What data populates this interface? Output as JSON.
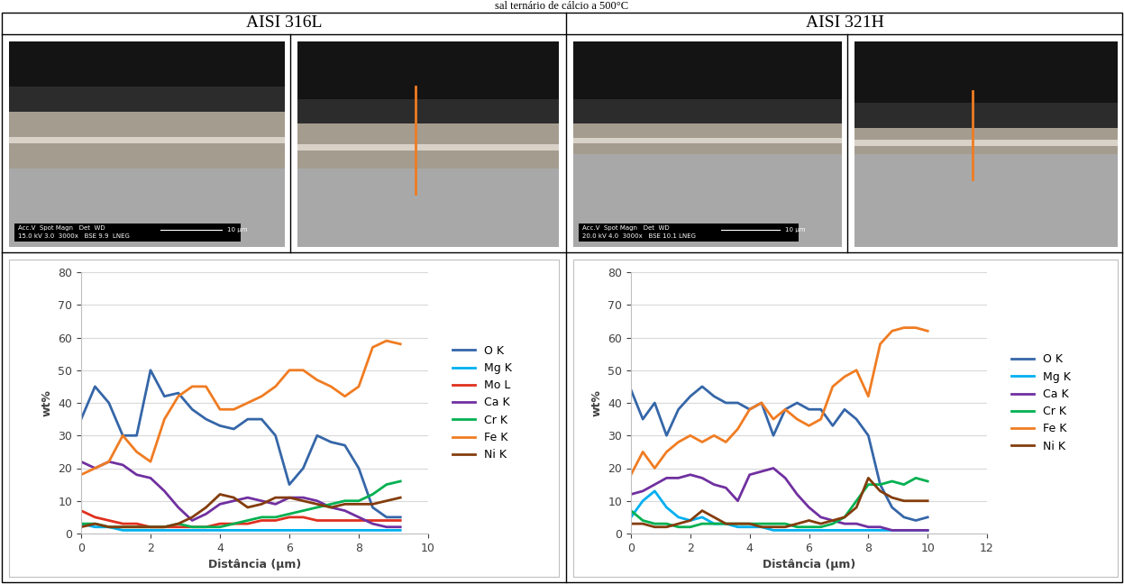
{
  "caption": "sal ternário de cálcio a 500°C",
  "headers": [
    "AISI 316L",
    "AISI 321H"
  ],
  "sem_labels": [
    {
      "lines": [
        "Acc.V  Spot Magn   Det  WD",
        "15.0 kV 3.0  3000x   BSE 9.9  LNEG"
      ],
      "scale": "10 µm"
    },
    {
      "lines": [
        "Acc.V  Spot Magn   Det  WD",
        "20.0 kV 4.0  3000x   BSE 10.1 LNEG"
      ],
      "scale": "10 µm"
    }
  ],
  "chart_data": [
    {
      "type": "line",
      "xlabel": "Distância (µm)",
      "ylabel": "wt%",
      "xlim": [
        0,
        10
      ],
      "xticks": [
        0,
        2,
        4,
        6,
        8,
        10
      ],
      "ylim": [
        0,
        80
      ],
      "yticks": [
        0,
        10,
        20,
        30,
        40,
        50,
        60,
        70,
        80
      ],
      "grid": true,
      "legend": "right",
      "x": [
        0,
        0.4,
        0.8,
        1.2,
        1.6,
        2.0,
        2.4,
        2.8,
        3.2,
        3.6,
        4.0,
        4.4,
        4.8,
        5.2,
        5.6,
        6.0,
        6.4,
        6.8,
        7.2,
        7.6,
        8.0,
        8.4,
        8.8,
        9.2
      ],
      "series": [
        {
          "name": "O K",
          "color": "#3566A8",
          "values": [
            35,
            45,
            40,
            30,
            30,
            50,
            42,
            43,
            38,
            35,
            33,
            32,
            35,
            35,
            30,
            15,
            20,
            30,
            28,
            27,
            20,
            8,
            5,
            5
          ]
        },
        {
          "name": "Mg K",
          "color": "#00B0F0",
          "values": [
            3,
            2,
            2,
            1,
            1,
            1,
            1,
            1,
            1,
            1,
            1,
            1,
            1,
            1,
            1,
            1,
            1,
            1,
            1,
            1,
            1,
            1,
            1,
            1
          ]
        },
        {
          "name": "Mo L",
          "color": "#E0301E",
          "values": [
            7,
            5,
            4,
            3,
            3,
            2,
            2,
            2,
            2,
            2,
            3,
            3,
            3,
            4,
            4,
            5,
            5,
            4,
            4,
            4,
            4,
            4,
            4,
            4
          ]
        },
        {
          "name": "Ca K",
          "color": "#7030A0",
          "values": [
            22,
            20,
            22,
            21,
            18,
            17,
            13,
            8,
            4,
            6,
            9,
            10,
            11,
            10,
            9,
            11,
            11,
            10,
            8,
            7,
            5,
            3,
            2,
            2
          ]
        },
        {
          "name": "Cr K",
          "color": "#00B050",
          "values": [
            3,
            3,
            2,
            2,
            2,
            2,
            2,
            3,
            2,
            2,
            2,
            3,
            4,
            5,
            5,
            6,
            7,
            8,
            9,
            10,
            10,
            12,
            15,
            16
          ]
        },
        {
          "name": "Fe K",
          "color": "#F07C22",
          "values": [
            18,
            20,
            22,
            30,
            25,
            22,
            35,
            42,
            45,
            45,
            38,
            38,
            40,
            42,
            45,
            50,
            50,
            47,
            45,
            42,
            45,
            57,
            59,
            58
          ]
        },
        {
          "name": "Ni K",
          "color": "#843C0C",
          "values": [
            2,
            3,
            2,
            2,
            2,
            2,
            2,
            3,
            5,
            8,
            12,
            11,
            8,
            9,
            11,
            11,
            10,
            9,
            8,
            9,
            9,
            9,
            10,
            11
          ]
        }
      ]
    },
    {
      "type": "line",
      "xlabel": "Distância (µm)",
      "ylabel": "wt%",
      "xlim": [
        0,
        12
      ],
      "xticks": [
        0,
        2,
        4,
        6,
        8,
        10,
        12
      ],
      "ylim": [
        0,
        80
      ],
      "yticks": [
        0,
        10,
        20,
        30,
        40,
        50,
        60,
        70,
        80
      ],
      "grid": true,
      "legend": "right",
      "x": [
        0,
        0.4,
        0.8,
        1.2,
        1.6,
        2.0,
        2.4,
        2.8,
        3.2,
        3.6,
        4.0,
        4.4,
        4.8,
        5.2,
        5.6,
        6.0,
        6.4,
        6.8,
        7.2,
        7.6,
        8.0,
        8.4,
        8.8,
        9.2,
        9.6,
        10.0
      ],
      "series": [
        {
          "name": "O K",
          "color": "#3566A8",
          "values": [
            44,
            35,
            40,
            30,
            38,
            42,
            45,
            42,
            40,
            40,
            38,
            40,
            30,
            38,
            40,
            38,
            38,
            33,
            38,
            35,
            30,
            15,
            8,
            5,
            4,
            5
          ]
        },
        {
          "name": "Mg K",
          "color": "#00B0F0",
          "values": [
            5,
            10,
            13,
            8,
            5,
            4,
            5,
            3,
            3,
            2,
            2,
            2,
            1,
            1,
            1,
            1,
            1,
            1,
            1,
            1,
            1,
            1,
            1,
            1,
            1,
            1
          ]
        },
        {
          "name": "Ca K",
          "color": "#7030A0",
          "values": [
            12,
            13,
            15,
            17,
            17,
            18,
            17,
            15,
            14,
            10,
            18,
            19,
            20,
            17,
            12,
            8,
            5,
            4,
            3,
            3,
            2,
            2,
            1,
            1,
            1,
            1
          ]
        },
        {
          "name": "Cr K",
          "color": "#00B050",
          "values": [
            7,
            4,
            3,
            3,
            2,
            2,
            3,
            3,
            3,
            3,
            3,
            3,
            3,
            3,
            2,
            2,
            2,
            3,
            5,
            10,
            15,
            15,
            16,
            15,
            17,
            16
          ]
        },
        {
          "name": "Fe K",
          "color": "#F07C22",
          "values": [
            18,
            25,
            20,
            25,
            28,
            30,
            28,
            30,
            28,
            32,
            38,
            40,
            35,
            38,
            35,
            33,
            35,
            45,
            48,
            50,
            42,
            58,
            62,
            63,
            63,
            62
          ]
        },
        {
          "name": "Ni K",
          "color": "#843C0C",
          "values": [
            3,
            3,
            2,
            2,
            3,
            4,
            7,
            5,
            3,
            3,
            3,
            2,
            2,
            2,
            3,
            4,
            3,
            4,
            5,
            8,
            17,
            13,
            11,
            10,
            10,
            10
          ]
        }
      ]
    }
  ]
}
